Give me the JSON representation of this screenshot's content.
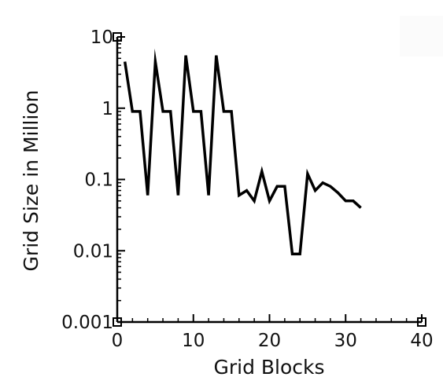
{
  "chart_data": {
    "type": "line",
    "title": "",
    "xlabel": "Grid Blocks",
    "ylabel": "Grid Size in Million",
    "xlim": [
      0,
      40
    ],
    "ylim": [
      0.001,
      10
    ],
    "yscale": "log",
    "grid": false,
    "legend": "none",
    "line_color": "#000000",
    "background_color": "#ffffff",
    "x_ticks": [
      0,
      10,
      20,
      30,
      40
    ],
    "x_tick_labels": [
      "0",
      "10",
      "20",
      "30",
      "40"
    ],
    "y_ticks": [
      0.001,
      0.01,
      0.1,
      1,
      10
    ],
    "y_tick_labels": [
      "0.001",
      "0.01",
      "0.1",
      "1",
      "10"
    ],
    "series": [
      {
        "x": [
          1,
          2,
          3,
          4,
          5,
          6,
          7,
          8,
          9,
          10,
          11,
          12,
          13,
          14,
          15,
          16,
          17,
          18,
          19,
          20,
          21,
          22,
          23,
          24,
          25,
          26,
          27,
          28,
          29,
          30,
          31,
          32
        ],
        "y": [
          4.5,
          0.9,
          0.9,
          0.06,
          4.5,
          0.9,
          0.9,
          0.06,
          5.5,
          0.9,
          0.9,
          0.06,
          5.5,
          0.9,
          0.9,
          0.06,
          0.07,
          0.05,
          0.13,
          0.05,
          0.08,
          0.08,
          0.009,
          0.009,
          0.12,
          0.07,
          0.09,
          0.08,
          0.065,
          0.05,
          0.05,
          0.04
        ]
      }
    ]
  }
}
